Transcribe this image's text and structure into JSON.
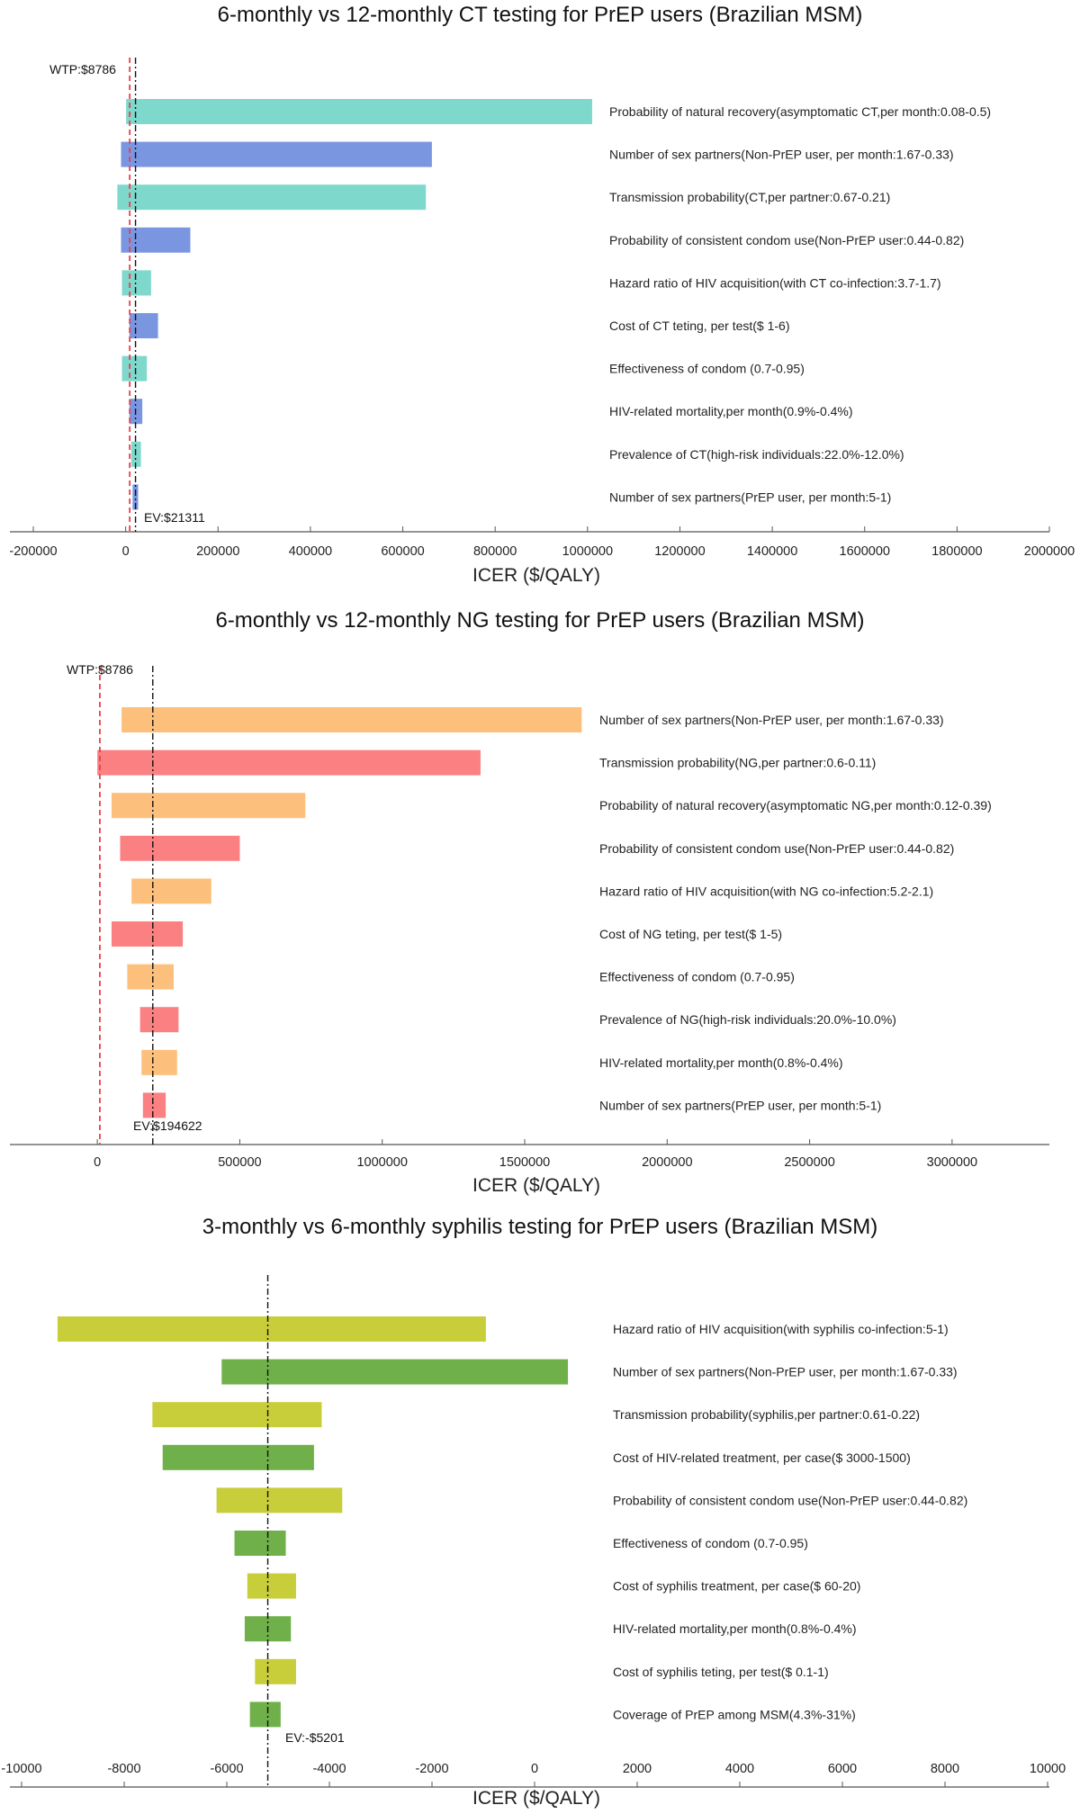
{
  "chart_data": [
    {
      "type": "bar",
      "subtype": "tornado",
      "title": "6-monthly vs 12-monthly CT testing for PrEP users (Brazilian MSM)",
      "xlabel": "ICER ($/QALY)",
      "ylabel": "",
      "xlim": [
        -200000,
        2000000
      ],
      "xticks": [
        -200000,
        0,
        200000,
        400000,
        600000,
        800000,
        1000000,
        1200000,
        1400000,
        1600000,
        1800000,
        2000000
      ],
      "grid": false,
      "colors": [
        "#7fd8cc",
        "#7b96e0"
      ],
      "wtp": {
        "label": "WTP:$8786",
        "value": 8786,
        "color": "#e8404a"
      },
      "ev": {
        "label": "EV:$21311",
        "value": 21311
      },
      "parameters": [
        {
          "label": "Probability of natural recovery(asymptomatic CT,per month:0.08-0.5)",
          "low": 1000,
          "high": 1010000
        },
        {
          "label": "Number of sex partners(Non-PrEP user, per month:1.67-0.33)",
          "low": -10000,
          "high": 663000
        },
        {
          "label": "Transmission probability(CT,per partner:0.67-0.21)",
          "low": -18000,
          "high": 650000
        },
        {
          "label": "Probability of consistent condom use(Non-PrEP user:0.44-0.82)",
          "low": -10000,
          "high": 140000
        },
        {
          "label": "Hazard ratio of HIV acquisition(with CT co-infection:3.7-1.7)",
          "low": -8000,
          "high": 55000
        },
        {
          "label": "Cost of CT teting, per test($ 1-6)",
          "low": 8000,
          "high": 70000
        },
        {
          "label": "Effectiveness of condom (0.7-0.95)",
          "low": -8000,
          "high": 46000
        },
        {
          "label": "HIV-related mortality,per month(0.9%-0.4%)",
          "low": 8000,
          "high": 36000
        },
        {
          "label": "Prevalence of CT(high-risk individuals:22.0%-12.0%)",
          "low": 12000,
          "high": 33000
        },
        {
          "label": "Number of sex partners(PrEP user, per month:5-1)",
          "low": 15000,
          "high": 27000
        }
      ]
    },
    {
      "type": "bar",
      "subtype": "tornado",
      "title": "6-monthly vs 12-monthly NG testing for PrEP users (Brazilian MSM)",
      "xlabel": "ICER ($/QALY)",
      "ylabel": "",
      "xlim": [
        -130000,
        3250000
      ],
      "xticks": [
        0,
        500000,
        1000000,
        1500000,
        2000000,
        2500000,
        3000000
      ],
      "grid": false,
      "colors": [
        "#fcc07c",
        "#fb8082"
      ],
      "wtp": {
        "label": "WTP:$8786",
        "value": 8786,
        "color": "#e8404a"
      },
      "ev": {
        "label": "EV:$194622",
        "value": 194622
      },
      "parameters": [
        {
          "label": "Number of sex partners(Non-PrEP user, per month:1.67-0.33)",
          "low": 85000,
          "high": 1700000
        },
        {
          "label": "Transmission probability(NG,per partner:0.6-0.11)",
          "low": 0,
          "high": 1345000
        },
        {
          "label": "Probability of natural recovery(asymptomatic NG,per month:0.12-0.39)",
          "low": 50000,
          "high": 730000
        },
        {
          "label": "Probability of consistent condom use(Non-PrEP user:0.44-0.82)",
          "low": 80000,
          "high": 500000
        },
        {
          "label": "Hazard ratio of HIV acquisition(with NG co-infection:5.2-2.1)",
          "low": 120000,
          "high": 400000
        },
        {
          "label": "Cost of NG teting, per test($ 1-5)",
          "low": 50000,
          "high": 300000
        },
        {
          "label": "Effectiveness of condom (0.7-0.95)",
          "low": 105000,
          "high": 268000
        },
        {
          "label": "Prevalence of NG(high-risk individuals:20.0%-10.0%)",
          "low": 150000,
          "high": 285000
        },
        {
          "label": "HIV-related mortality,per month(0.8%-0.4%)",
          "low": 155000,
          "high": 280000
        },
        {
          "label": "Number of sex partners(PrEP user, per month:5-1)",
          "low": 160000,
          "high": 240000
        }
      ]
    },
    {
      "type": "bar",
      "subtype": "tornado",
      "title": "3-monthly vs 6-monthly syphilis testing for PrEP users (Brazilian MSM)",
      "xlabel": "ICER ($/QALY)",
      "ylabel": "",
      "xlim": [
        -10000,
        10000
      ],
      "xticks": [
        -10000,
        -8000,
        -6000,
        -4000,
        -2000,
        0,
        2000,
        4000,
        6000,
        8000,
        10000
      ],
      "grid": false,
      "colors": [
        "#c8cd3a",
        "#70b04a"
      ],
      "ev": {
        "label": "EV:-$5201",
        "value": -5201
      },
      "parameters": [
        {
          "label": "Hazard ratio of HIV acquisition(with syphilis co-infection:5-1)",
          "low": -9300,
          "high": -950
        },
        {
          "label": "Number of sex partners(Non-PrEP user, per month:1.67-0.33)",
          "low": -6100,
          "high": 650
        },
        {
          "label": "Transmission probability(syphilis,per partner:0.61-0.22)",
          "low": -7450,
          "high": -4150
        },
        {
          "label": "Cost of HIV-related treatment, per case($ 3000-1500)",
          "low": -7250,
          "high": -4300
        },
        {
          "label": "Probability of consistent condom use(Non-PrEP user:0.44-0.82)",
          "low": -6200,
          "high": -3750
        },
        {
          "label": "Effectiveness of condom (0.7-0.95)",
          "low": -5850,
          "high": -4850
        },
        {
          "label": "Cost of syphilis treatment, per case($ 60-20)",
          "low": -5600,
          "high": -4650
        },
        {
          "label": "HIV-related mortality,per month(0.8%-0.4%)",
          "low": -5650,
          "high": -4750
        },
        {
          "label": "Cost of syphilis teting, per test($ 0.1-1)",
          "low": -5450,
          "high": -4650
        },
        {
          "label": "Coverage of PrEP among MSM(4.3%-31%)",
          "low": -5550,
          "high": -4950
        }
      ]
    }
  ]
}
